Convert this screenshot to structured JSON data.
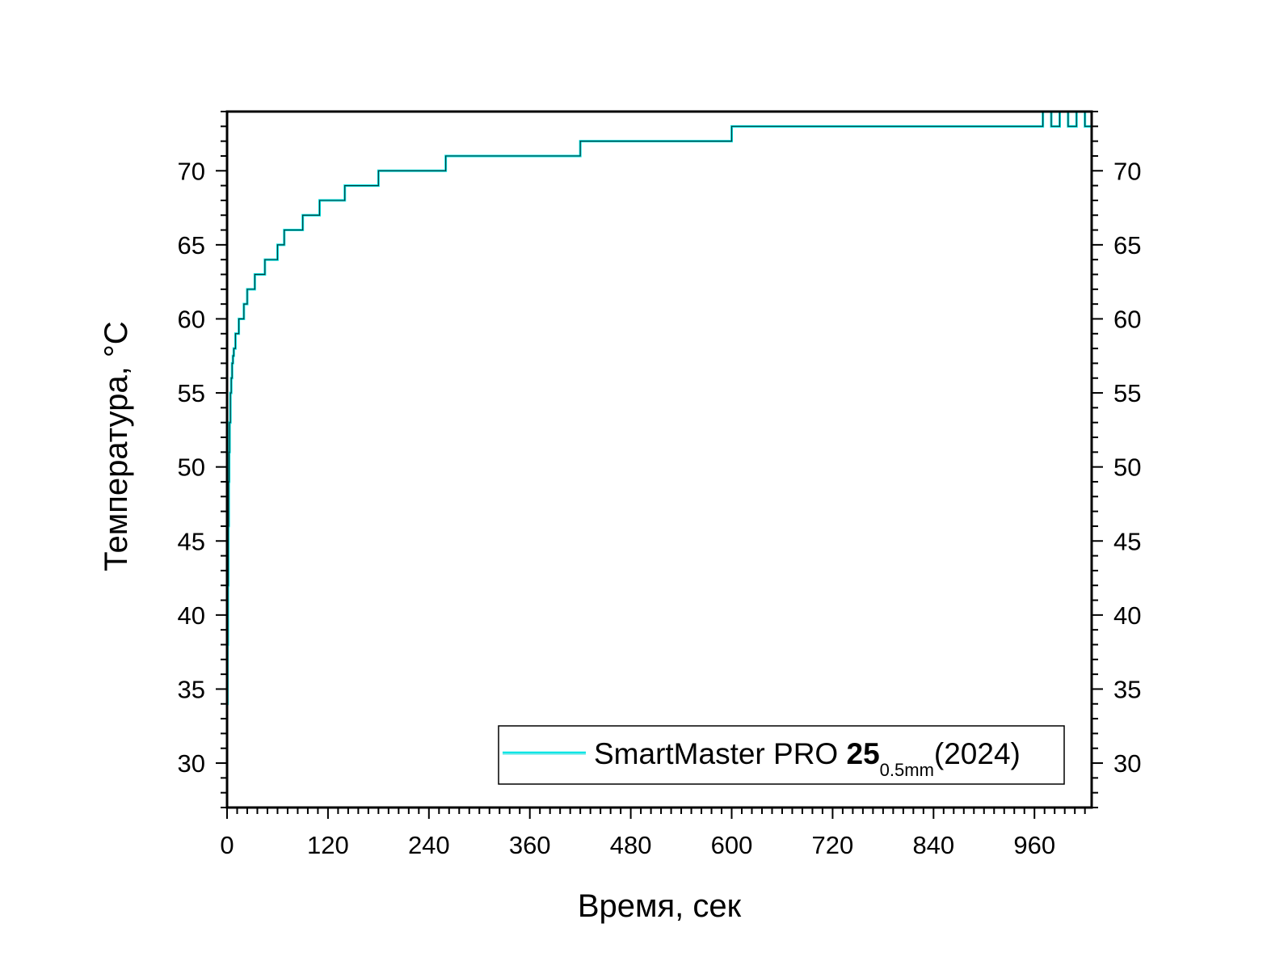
{
  "chart_data": {
    "type": "line",
    "xlabel": "Время, сек",
    "ylabel": "Температура, °C",
    "xlim": [
      0,
      1028
    ],
    "ylim": [
      27,
      74
    ],
    "x_ticks": [
      0,
      120,
      240,
      360,
      480,
      600,
      720,
      840,
      960
    ],
    "x_tick_labels": [
      "0",
      "120",
      "240",
      "360",
      "480",
      "600",
      "720",
      "840",
      "960"
    ],
    "y_ticks": [
      30,
      35,
      40,
      45,
      50,
      55,
      60,
      65,
      70
    ],
    "y_tick_labels": [
      "30",
      "35",
      "40",
      "45",
      "50",
      "55",
      "60",
      "65",
      "70"
    ],
    "grid": false,
    "legend": {
      "position": "bottom-right",
      "text_main": "SmartMaster PRO ",
      "text_bold": "25",
      "text_sub": "0.5mm",
      "text_tail": "(2024)"
    },
    "series": [
      {
        "name": "SmartMaster PRO 25 0.5mm (2024)",
        "color": "#00e5e5",
        "x": [
          0,
          0.5,
          1,
          1.5,
          2,
          2.5,
          3,
          4,
          5,
          6,
          7,
          8,
          10,
          12,
          14,
          17,
          20,
          24,
          28,
          33,
          38,
          45,
          52,
          60,
          68,
          80,
          90,
          100,
          110,
          125,
          140,
          160,
          180,
          200,
          230,
          260,
          300,
          340,
          380,
          420,
          480,
          540,
          570,
          600,
          650,
          700,
          760,
          820,
          880,
          920,
          960,
          970,
          980,
          990,
          1000,
          1010,
          1020,
          1028
        ],
        "y": [
          34,
          38,
          42,
          46,
          49,
          51,
          53,
          55,
          56,
          57,
          57.5,
          58,
          59,
          59,
          60,
          60,
          61,
          62,
          62,
          63,
          63,
          64,
          64,
          65,
          66,
          66,
          67,
          67,
          68,
          68,
          69,
          69,
          70,
          70,
          70,
          71,
          71,
          71,
          71,
          72,
          72,
          72,
          72,
          73,
          73,
          73,
          73,
          73,
          73,
          73,
          73,
          74,
          73,
          74,
          73,
          74,
          73,
          74
        ]
      }
    ]
  }
}
